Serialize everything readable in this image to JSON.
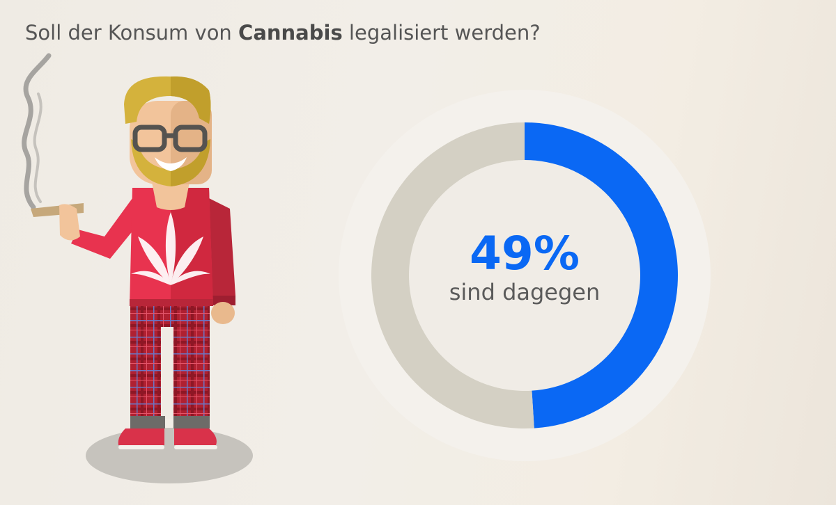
{
  "title": {
    "prefix": "Soll der Konsum von ",
    "emphasis": "Cannabis",
    "suffix": " legalisiert werden?"
  },
  "illustration": {
    "subject": "cartoon-man-smoking-joint",
    "colors": {
      "sweater": "#e8334f",
      "hair": "#d4b23c",
      "skin": "#f2c49b"
    }
  },
  "center": {
    "value_label": "49%",
    "caption": "sind dagegen"
  },
  "colors": {
    "accent": "#0a68f4",
    "remainder": "#d4d0c4",
    "outer_ring": "#f4f1ec"
  },
  "chart_data": {
    "type": "pie",
    "style": "donut",
    "slices": [
      {
        "label": "sind dagegen",
        "value": 49,
        "color": "#0a68f4"
      },
      {
        "label": "",
        "value": 51,
        "color": "#d4d0c4"
      }
    ]
  }
}
